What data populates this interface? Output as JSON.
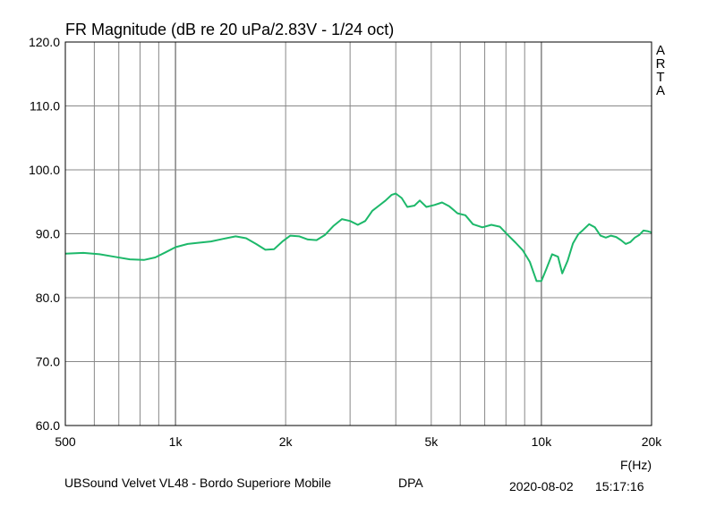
{
  "chart_data": {
    "type": "line",
    "title": "FR Magnitude (dB re 20 uPa/2.83V - 1/24 oct)",
    "xlabel": "F(Hz)",
    "ylabel": "",
    "x_scale": "log",
    "xlim": [
      500,
      20000
    ],
    "ylim": [
      60,
      120
    ],
    "grid": true,
    "x_ticks": [
      {
        "value": 500,
        "label": "500"
      },
      {
        "value": 1000,
        "label": "1k"
      },
      {
        "value": 2000,
        "label": "2k"
      },
      {
        "value": 5000,
        "label": "5k"
      },
      {
        "value": 10000,
        "label": "10k"
      },
      {
        "value": 20000,
        "label": "20k"
      }
    ],
    "y_ticks": [
      {
        "value": 60,
        "label": "60.0"
      },
      {
        "value": 70,
        "label": "70.0"
      },
      {
        "value": 80,
        "label": "80.0"
      },
      {
        "value": 90,
        "label": "90.0"
      },
      {
        "value": 100,
        "label": "100.0"
      },
      {
        "value": 110,
        "label": "110.0"
      },
      {
        "value": 120,
        "label": "120.0"
      }
    ],
    "series": [
      {
        "color": "#1db86a",
        "x": [
          500,
          560,
          620,
          680,
          750,
          820,
          880,
          940,
          1000,
          1080,
          1160,
          1250,
          1350,
          1460,
          1560,
          1660,
          1760,
          1860,
          1960,
          2060,
          2180,
          2300,
          2430,
          2560,
          2700,
          2850,
          3000,
          3150,
          3300,
          3450,
          3600,
          3750,
          3900,
          4000,
          4150,
          4300,
          4500,
          4650,
          4850,
          5100,
          5350,
          5600,
          5900,
          6200,
          6500,
          6900,
          7300,
          7700,
          8100,
          8500,
          8900,
          9300,
          9700,
          10000,
          10300,
          10700,
          11100,
          11400,
          11800,
          12200,
          12600,
          13000,
          13500,
          14000,
          14500,
          15000,
          15500,
          16000,
          16500,
          17000,
          17500,
          18000,
          18500,
          19000,
          19500,
          20000
        ],
        "y": [
          86.9,
          87.0,
          86.8,
          86.4,
          86.0,
          85.9,
          86.3,
          87.1,
          87.9,
          88.4,
          88.6,
          88.8,
          89.2,
          89.6,
          89.3,
          88.4,
          87.5,
          87.6,
          88.8,
          89.7,
          89.6,
          89.1,
          89.0,
          89.8,
          91.2,
          92.3,
          92.0,
          91.4,
          92.0,
          93.6,
          94.4,
          95.2,
          96.1,
          96.3,
          95.6,
          94.2,
          94.4,
          95.2,
          94.2,
          94.5,
          94.9,
          94.3,
          93.2,
          92.9,
          91.5,
          91.0,
          91.4,
          91.1,
          89.8,
          88.6,
          87.4,
          85.6,
          82.6,
          82.6,
          84.4,
          86.8,
          86.4,
          83.8,
          85.8,
          88.5,
          89.9,
          90.6,
          91.5,
          91.0,
          89.7,
          89.4,
          89.7,
          89.5,
          89.0,
          88.4,
          88.7,
          89.4,
          89.8,
          90.5,
          90.4,
          90.2
        ]
      }
    ]
  },
  "watermark": [
    "A",
    "R",
    "T",
    "A"
  ],
  "footer": {
    "description": "UBSound Velvet VL48 - Bordo Superiore Mobile",
    "label": "DPA",
    "date": "2020-08-02",
    "time": "15:17:16"
  }
}
